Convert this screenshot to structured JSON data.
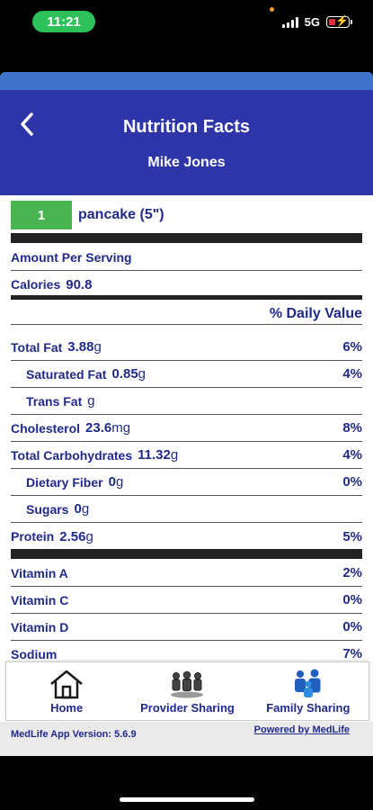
{
  "status_bar": {
    "time": "11:21",
    "network": "5G"
  },
  "header": {
    "back_icon": "chevron-left-icon",
    "title": "Nutrition Facts",
    "subtitle": "Mike Jones"
  },
  "serving": {
    "quantity": "1",
    "label": "pancake (5\")"
  },
  "amount_per_serving": "Amount Per Serving",
  "calories": {
    "label": "Calories",
    "value": "90.8"
  },
  "daily_value_heading": "% Daily Value",
  "nutrients": [
    {
      "label": "Total Fat",
      "value": "3.88",
      "unit": "g",
      "pct": "6%"
    },
    {
      "label": "Saturated Fat",
      "value": "0.85",
      "unit": "g",
      "pct": "4%"
    },
    {
      "label": "Trans Fat",
      "value": "",
      "unit": "g",
      "pct": ""
    },
    {
      "label": "Cholesterol",
      "value": "23.6",
      "unit": "mg",
      "pct": "8%"
    },
    {
      "label": "Total Carbohydrates",
      "value": "11.32",
      "unit": "g",
      "pct": "4%"
    },
    {
      "label": "Dietary Fiber",
      "value": "0",
      "unit": "g",
      "pct": "0%"
    },
    {
      "label": "Sugars",
      "value": "0",
      "unit": "g",
      "pct": ""
    },
    {
      "label": "Protein",
      "value": "2.56",
      "unit": "g",
      "pct": "5%"
    }
  ],
  "vitamins": [
    {
      "label": "Vitamin A",
      "pct": "2%"
    },
    {
      "label": "Vitamin C",
      "pct": "0%"
    },
    {
      "label": "Vitamin D",
      "pct": "0%"
    },
    {
      "label": "Sodium",
      "pct": "7%"
    }
  ],
  "tabs": [
    {
      "label": "Home",
      "icon": "home-icon"
    },
    {
      "label": "Provider Sharing",
      "icon": "group-icon"
    },
    {
      "label": "Family Sharing",
      "icon": "family-icon"
    }
  ],
  "footer": {
    "version": "MedLife App Version: 5.6.9",
    "powered": "Powered by MedLife"
  },
  "colors": {
    "header": "#2e35a8",
    "accent_stripe": "#3e73c9",
    "text": "#1f2a8a",
    "qty_green": "#49b552",
    "time_pill": "#2ec05a"
  }
}
